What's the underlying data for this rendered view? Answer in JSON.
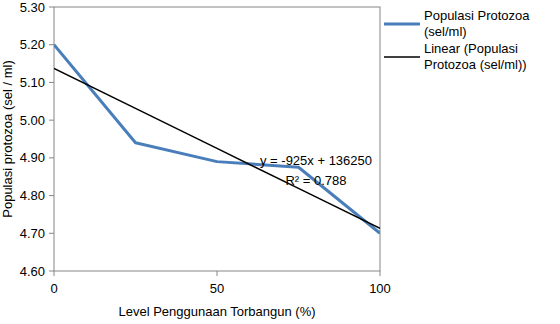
{
  "chart_data": {
    "type": "line",
    "x_label": "Level Penggunaan Torbangun (%)",
    "y_label": "Populasi protozoa (sel / ml)",
    "annotations": [
      "y = -925x + 136250",
      "R² = 0.788"
    ],
    "x": [
      0,
      25,
      50,
      75,
      100
    ],
    "series": [
      {
        "name": "Populasi Protozoa (sel/ml)",
        "color": "#4a7ebb",
        "values": [
          5.2,
          4.94,
          4.89,
          4.875,
          4.7
        ]
      },
      {
        "name": "Linear (Populasi Protozoa (sel/ml))",
        "color": "#000000",
        "values": [
          5.137,
          5.031,
          4.925,
          4.819,
          4.713
        ]
      }
    ],
    "xlim": [
      0,
      100
    ],
    "xticks": [
      0,
      50,
      100
    ],
    "ylim": [
      4.6,
      5.3
    ],
    "yticks": [
      {
        "value": 4.6,
        "label": "4.60"
      },
      {
        "value": 4.7,
        "label": "4.70"
      },
      {
        "value": 4.8,
        "label": "4.80"
      },
      {
        "value": 4.9,
        "label": "4.90"
      },
      {
        "value": 5,
        "label": "5.00"
      },
      {
        "value": 5.1,
        "label": "5.10"
      },
      {
        "value": 5.2,
        "label": "5.20"
      },
      {
        "value": 5.3,
        "label": "5.30"
      }
    ],
    "grid": false,
    "legend": "top-right"
  }
}
